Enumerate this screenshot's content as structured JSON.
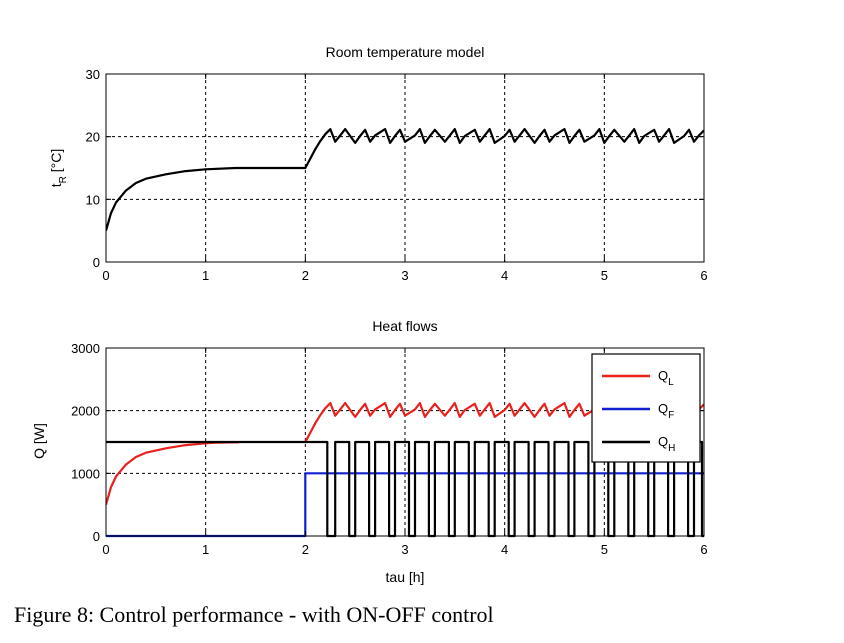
{
  "caption": "Figure 8: Control performance - with ON-OFF control",
  "chart_data": [
    {
      "type": "line",
      "title": "Room temperature model",
      "xlabel": "",
      "ylabel": "t",
      "ylabel_sub": "R",
      "ylabel_unit": " [°C]",
      "xlim": [
        0,
        6
      ],
      "ylim": [
        0,
        30
      ],
      "x_ticks": [
        0,
        1,
        2,
        3,
        4,
        5,
        6
      ],
      "y_ticks": [
        0,
        10,
        20,
        30
      ],
      "grid": true,
      "series": [
        {
          "color": "#000000",
          "x": [
            0,
            0.05,
            0.1,
            0.2,
            0.3,
            0.4,
            0.6,
            0.8,
            1.0,
            1.3,
            1.6,
            2.0,
            2.05,
            2.1,
            2.15,
            2.2,
            2.25,
            2.3,
            2.35,
            2.4,
            2.5,
            2.55,
            2.6,
            2.65,
            2.7,
            2.8,
            2.85,
            2.9,
            2.95,
            3.0,
            3.1,
            3.15,
            3.2,
            3.25,
            3.3,
            3.4,
            3.45,
            3.5,
            3.55,
            3.6,
            3.7,
            3.75,
            3.8,
            3.85,
            3.9,
            4.0,
            4.05,
            4.1,
            4.15,
            4.2,
            4.3,
            4.35,
            4.4,
            4.45,
            4.5,
            4.6,
            4.65,
            4.7,
            4.75,
            4.8,
            4.9,
            4.95,
            5.0,
            5.05,
            5.1,
            5.2,
            5.25,
            5.3,
            5.35,
            5.4,
            5.5,
            5.55,
            5.6,
            5.65,
            5.7,
            5.8,
            5.85,
            5.9,
            5.95,
            6.0
          ],
          "y": [
            5,
            7.8,
            9.5,
            11.4,
            12.6,
            13.3,
            14.0,
            14.5,
            14.8,
            15.0,
            15.0,
            15.0,
            16.5,
            18.0,
            19.3,
            20.4,
            21.2,
            19.2,
            20.2,
            21.2,
            19.0,
            20.1,
            21.1,
            19.2,
            20.2,
            21.2,
            19.0,
            20.1,
            21.1,
            19.2,
            20.2,
            21.2,
            19.0,
            20.1,
            21.1,
            19.2,
            20.2,
            21.2,
            19.0,
            20.1,
            21.1,
            19.2,
            20.2,
            21.2,
            19.0,
            20.1,
            21.1,
            19.2,
            20.2,
            21.2,
            19.0,
            20.1,
            21.1,
            19.2,
            20.2,
            21.2,
            19.0,
            20.1,
            21.1,
            19.2,
            20.2,
            21.2,
            19.0,
            20.1,
            21.1,
            19.2,
            20.2,
            21.2,
            19.0,
            20.1,
            21.1,
            19.2,
            20.2,
            21.2,
            19.0,
            20.1,
            21.1,
            19.2,
            20.2,
            21.0
          ]
        }
      ]
    },
    {
      "type": "line",
      "title": "Heat flows",
      "xlabel": "tau [h]",
      "ylabel": "Q [W]",
      "xlim": [
        0,
        6
      ],
      "ylim": [
        0,
        3000
      ],
      "x_ticks": [
        0,
        1,
        2,
        3,
        4,
        5,
        6
      ],
      "y_ticks": [
        0,
        1000,
        2000,
        3000
      ],
      "grid": true,
      "legend_position": "top-right",
      "series": [
        {
          "name": "Q",
          "name_sub": "L",
          "color": "#e8211d",
          "x": [
            0,
            0.05,
            0.1,
            0.2,
            0.3,
            0.4,
            0.6,
            0.8,
            1.0,
            1.1,
            1.33
          ],
          "y": [
            500,
            780,
            950,
            1140,
            1260,
            1330,
            1400,
            1450,
            1480,
            1490,
            1495
          ]
        },
        {
          "color": "#e8211d",
          "x": [
            2.0,
            2.05,
            2.1,
            2.15,
            2.2,
            2.25,
            2.3,
            2.35,
            2.4,
            2.5,
            2.55,
            2.6,
            2.65,
            2.7,
            2.8,
            2.85,
            2.9,
            2.95,
            3.0,
            3.1,
            3.15,
            3.2,
            3.25,
            3.3,
            3.4,
            3.45,
            3.5,
            3.55,
            3.6,
            3.7,
            3.75,
            3.8,
            3.85,
            3.9,
            4.0,
            4.05,
            4.1,
            4.15,
            4.2,
            4.3,
            4.35,
            4.4,
            4.45,
            4.5,
            4.6,
            4.65,
            4.7,
            4.75,
            4.8,
            4.9,
            4.95,
            5.0,
            5.05,
            5.1,
            5.2,
            5.25,
            5.3,
            5.35,
            5.4,
            5.5,
            5.55,
            5.6,
            5.65,
            5.7,
            5.8,
            5.85,
            5.9,
            5.95,
            6.0
          ],
          "y": [
            1500,
            1650,
            1800,
            1930,
            2040,
            2120,
            1920,
            2020,
            2120,
            1900,
            2010,
            2110,
            1920,
            2020,
            2120,
            1900,
            2010,
            2110,
            1920,
            2020,
            2120,
            1900,
            2010,
            2110,
            1920,
            2020,
            2120,
            1900,
            2010,
            2110,
            1920,
            2020,
            2120,
            1900,
            2010,
            2110,
            1920,
            2020,
            2120,
            1900,
            2010,
            2110,
            1920,
            2020,
            2120,
            1900,
            2010,
            2110,
            1920,
            2020,
            2120,
            1900,
            2010,
            2110,
            1920,
            2020,
            2120,
            1900,
            2010,
            2110,
            1920,
            2020,
            2120,
            1900,
            2010,
            2110,
            1920,
            2020,
            2100
          ]
        },
        {
          "name": "Q",
          "name_sub": "F",
          "color": "#1020d0",
          "x": [
            0,
            2.0,
            2.0,
            6.0
          ],
          "y": [
            0,
            0,
            1000,
            1000
          ]
        },
        {
          "name": "Q",
          "name_sub": "H",
          "color": "#000000",
          "x": [
            0,
            2.0,
            2.0,
            2.22,
            2.22,
            2.3,
            2.3,
            2.44,
            2.44,
            2.5,
            2.5,
            2.64,
            2.64,
            2.7,
            2.7,
            2.84,
            2.84,
            2.9,
            2.9,
            3.04,
            3.04,
            3.1,
            3.1,
            3.24,
            3.24,
            3.3,
            3.3,
            3.44,
            3.44,
            3.5,
            3.5,
            3.64,
            3.64,
            3.7,
            3.7,
            3.84,
            3.84,
            3.9,
            3.9,
            4.04,
            4.04,
            4.1,
            4.1,
            4.24,
            4.24,
            4.3,
            4.3,
            4.44,
            4.44,
            4.5,
            4.5,
            4.64,
            4.64,
            4.7,
            4.7,
            4.84,
            4.84,
            4.9,
            4.9,
            5.04,
            5.04,
            5.1,
            5.1,
            5.24,
            5.24,
            5.3,
            5.3,
            5.44,
            5.44,
            5.5,
            5.5,
            5.64,
            5.64,
            5.7,
            5.7,
            5.84,
            5.84,
            5.9,
            5.9,
            5.98,
            5.98,
            6.0
          ],
          "y": [
            1500,
            1500,
            1500,
            1500,
            0,
            0,
            1500,
            1500,
            0,
            0,
            1500,
            1500,
            0,
            0,
            1500,
            1500,
            0,
            0,
            1500,
            1500,
            0,
            0,
            1500,
            1500,
            0,
            0,
            1500,
            1500,
            0,
            0,
            1500,
            1500,
            0,
            0,
            1500,
            1500,
            0,
            0,
            1500,
            1500,
            0,
            0,
            1500,
            1500,
            0,
            0,
            1500,
            1500,
            0,
            0,
            1500,
            1500,
            0,
            0,
            1500,
            1500,
            0,
            0,
            1500,
            1500,
            0,
            0,
            1500,
            1500,
            0,
            0,
            1500,
            1500,
            0,
            0,
            1500,
            1500,
            0,
            0,
            1500,
            1500,
            0,
            0,
            1500,
            1500,
            0,
            0
          ]
        }
      ]
    }
  ]
}
